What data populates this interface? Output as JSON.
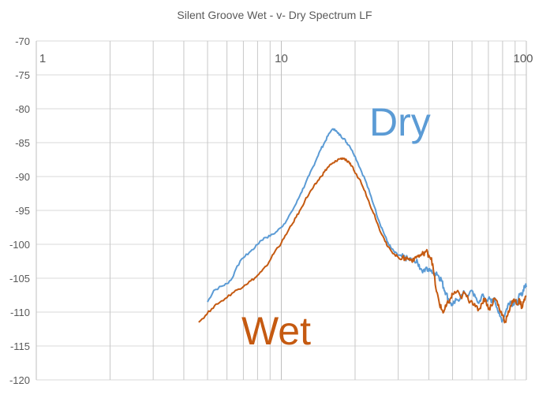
{
  "chart_data": {
    "type": "line",
    "title": "Silent Groove Wet - v- Dry  Spectrum LF",
    "xlabel": "",
    "ylabel": "",
    "x_scale": "log",
    "xlim": [
      1,
      100
    ],
    "ylim": [
      -120,
      -70
    ],
    "x_ticks": [
      1,
      10,
      100
    ],
    "x_tick_labels": [
      "1",
      "10",
      "100"
    ],
    "y_ticks": [
      -70,
      -75,
      -80,
      -85,
      -90,
      -95,
      -100,
      -105,
      -110,
      -115,
      -120
    ],
    "y_tick_labels": [
      "-70",
      "-75",
      "-80",
      "-85",
      "-90",
      "-95",
      "-100",
      "-105",
      "-110",
      "-115",
      "-120"
    ],
    "grid": true,
    "legend": "none",
    "annotations": [
      {
        "text": "Dry",
        "color": "#5B9BD5",
        "series": "Dry"
      },
      {
        "text": "Wet",
        "color": "#C55A11",
        "series": "Wet"
      }
    ],
    "series": [
      {
        "name": "Dry",
        "color": "#5B9BD5",
        "x": [
          5.0,
          5.3,
          5.7,
          6.0,
          6.3,
          6.6,
          7.0,
          7.4,
          7.8,
          8.2,
          8.6,
          9.0,
          9.5,
          10.0,
          10.5,
          11.0,
          11.5,
          12.0,
          12.5,
          13.0,
          13.5,
          14.0,
          14.5,
          15.0,
          15.5,
          16.0,
          16.5,
          17.0,
          17.5,
          18.0,
          18.5,
          19.0,
          19.5,
          20.0,
          21.0,
          22.0,
          23.0,
          24.0,
          25.0,
          26.0,
          27.0,
          28.0,
          29.0,
          30.0,
          31.0,
          32.0,
          33.0,
          34.0,
          35.0,
          36.0,
          37.0,
          38.0,
          39.0,
          40.0,
          41.0,
          42.0,
          43.0,
          44.0,
          45.0,
          46.0,
          47.0,
          48.0,
          49.0,
          50.0,
          52.0,
          54.0,
          56.0,
          58.0,
          60.0,
          62.0,
          64.0,
          66.0,
          68.0,
          70.0,
          72.0,
          74.0,
          76.0,
          78.0,
          80.0,
          82.0,
          84.0,
          86.0,
          88.0,
          90.0,
          92.0,
          94.0,
          96.0,
          98.0,
          100.0
        ],
        "values": [
          -108.5,
          -106.8,
          -106.2,
          -105.8,
          -105.0,
          -103.2,
          -102.0,
          -101.2,
          -100.5,
          -99.5,
          -99.0,
          -98.8,
          -98.2,
          -97.5,
          -96.5,
          -95.2,
          -94.0,
          -92.5,
          -91.2,
          -89.8,
          -88.5,
          -87.2,
          -86.0,
          -85.0,
          -84.0,
          -83.2,
          -83.0,
          -83.6,
          -84.0,
          -84.4,
          -85.0,
          -85.5,
          -86.2,
          -87.0,
          -88.8,
          -90.5,
          -92.5,
          -94.5,
          -96.5,
          -98.0,
          -99.5,
          -100.5,
          -101.2,
          -101.6,
          -101.8,
          -102.0,
          -102.2,
          -102.3,
          -102.6,
          -102.7,
          -103.6,
          -103.8,
          -103.4,
          -104.0,
          -103.8,
          -104.4,
          -104.1,
          -104.8,
          -105.2,
          -106.4,
          -107.2,
          -108.0,
          -108.6,
          -109.0,
          -108.2,
          -107.8,
          -107.1,
          -107.6,
          -106.8,
          -107.8,
          -108.7,
          -107.4,
          -108.1,
          -108.0,
          -108.6,
          -107.9,
          -109.4,
          -110.6,
          -111.2,
          -110.2,
          -109.0,
          -108.4,
          -108.8,
          -108.2,
          -108.9,
          -107.4,
          -107.6,
          -106.1,
          -106.3
        ]
      },
      {
        "name": "Wet",
        "color": "#C55A11",
        "x": [
          4.6,
          4.9,
          5.2,
          5.5,
          5.9,
          6.3,
          6.7,
          7.1,
          7.5,
          7.9,
          8.3,
          8.7,
          9.1,
          9.5,
          10.0,
          10.5,
          11.0,
          11.5,
          12.0,
          12.5,
          13.0,
          13.5,
          14.0,
          14.5,
          15.0,
          15.5,
          16.0,
          16.5,
          17.0,
          17.5,
          18.0,
          18.5,
          19.0,
          19.5,
          20.0,
          21.0,
          22.0,
          23.0,
          24.0,
          25.0,
          26.0,
          27.0,
          28.0,
          29.0,
          30.0,
          31.0,
          32.0,
          33.0,
          34.0,
          35.0,
          36.0,
          37.0,
          38.0,
          39.0,
          40.0,
          41.0,
          42.0,
          43.0,
          44.0,
          45.0,
          46.0,
          47.0,
          48.0,
          49.0,
          50.0,
          52.0,
          54.0,
          56.0,
          58.0,
          60.0,
          62.0,
          64.0,
          66.0,
          68.0,
          70.0,
          72.0,
          74.0,
          76.0,
          78.0,
          80.0,
          82.0,
          84.0,
          86.0,
          88.0,
          90.0,
          92.0,
          94.0,
          96.0,
          98.0,
          100.0
        ],
        "values": [
          -111.5,
          -110.5,
          -109.5,
          -108.8,
          -108.0,
          -107.2,
          -106.6,
          -106.0,
          -105.4,
          -104.8,
          -104.0,
          -103.2,
          -102.0,
          -100.8,
          -99.8,
          -98.5,
          -97.2,
          -96.0,
          -94.8,
          -93.5,
          -92.5,
          -91.6,
          -90.8,
          -90.0,
          -89.3,
          -88.6,
          -88.2,
          -87.9,
          -87.5,
          -87.3,
          -87.3,
          -87.7,
          -88.1,
          -88.5,
          -89.5,
          -90.5,
          -92.2,
          -94.2,
          -95.6,
          -97.5,
          -98.8,
          -100.2,
          -100.9,
          -101.5,
          -101.9,
          -102.2,
          -102.0,
          -102.2,
          -102.3,
          -102.0,
          -101.8,
          -101.7,
          -101.3,
          -101.0,
          -101.6,
          -102.0,
          -104.5,
          -107.0,
          -108.4,
          -109.6,
          -110.0,
          -109.2,
          -108.6,
          -108.0,
          -107.4,
          -107.0,
          -107.8,
          -107.2,
          -108.2,
          -108.4,
          -109.2,
          -109.6,
          -108.7,
          -108.0,
          -109.6,
          -109.0,
          -108.0,
          -108.4,
          -109.8,
          -110.4,
          -111.4,
          -110.4,
          -109.1,
          -108.6,
          -108.4,
          -108.9,
          -108.2,
          -109.4,
          -108.1,
          -107.6
        ]
      }
    ]
  }
}
